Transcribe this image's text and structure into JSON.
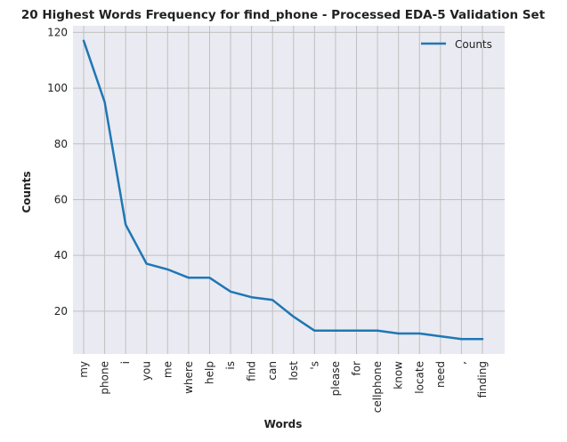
{
  "chart_data": {
    "type": "line",
    "title": "20 Highest Words Frequency for find_phone - Processed EDA-5 Validation Set",
    "xlabel": "Words",
    "ylabel": "Counts",
    "categories": [
      "my",
      "phone",
      "i",
      "you",
      "me",
      "where",
      "help",
      "is",
      "find",
      "can",
      "lost",
      "'s",
      "please",
      "for",
      "cellphone",
      "know",
      "locate",
      "need",
      ",",
      "finding"
    ],
    "series": [
      {
        "name": "Counts",
        "color": "#1f77b4",
        "values": [
          117,
          95,
          51,
          37,
          35,
          32,
          32,
          27,
          25,
          24,
          18,
          13,
          13,
          13,
          13,
          12,
          12,
          11,
          10,
          10
        ]
      }
    ],
    "ylim": [
      4.65,
      122.35
    ],
    "yticks": [
      20,
      40,
      60,
      80,
      100,
      120
    ],
    "grid": true,
    "legend": "top-right",
    "background": "#eaeaf2",
    "grid_color": "#c0c0c0"
  }
}
